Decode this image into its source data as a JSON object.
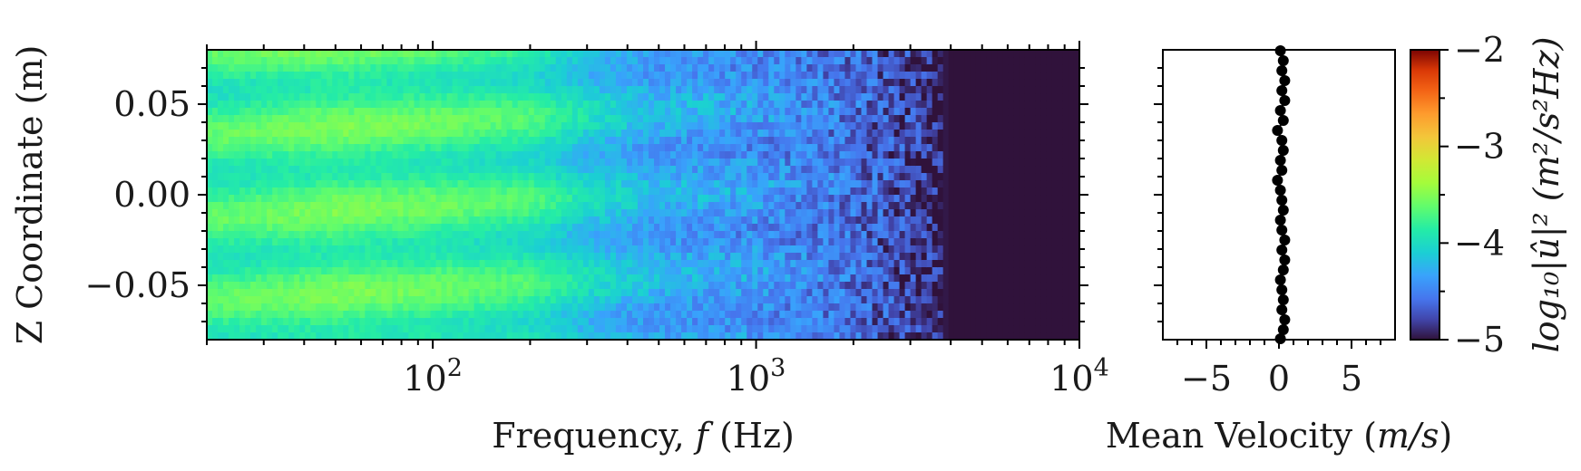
{
  "chart_data": [
    {
      "type": "heatmap",
      "xlabel": "Frequency, f (Hz)",
      "ylabel": "Z Coordinate (m)",
      "xscale": "log",
      "xlim": [
        20,
        10000
      ],
      "ylim": [
        -0.08,
        0.08
      ],
      "x_ticks": [
        100,
        1000,
        10000
      ],
      "x_tick_labels": [
        {
          "base": "10",
          "exp": "2"
        },
        {
          "base": "10",
          "exp": "3"
        },
        {
          "base": "10",
          "exp": "4"
        }
      ],
      "y_ticks": [
        0.05,
        0.0,
        -0.05
      ],
      "y_tick_labels": [
        "0.05",
        "0.00",
        "−0.05"
      ],
      "colormap": "turbo",
      "clim": [
        -5,
        -2
      ],
      "colorbar": {
        "label": "log₁₀|û|² (m²/s²Hz)",
        "ticks": [
          -2,
          -3,
          -4,
          -5
        ],
        "tick_labels": [
          "−2",
          "−3",
          "−4",
          "−5"
        ]
      },
      "level_profile": {
        "freq_hz": [
          20,
          50,
          100,
          200,
          300,
          500,
          1000,
          2000,
          3000,
          4000,
          10000
        ],
        "log10_psd": [
          -3.8,
          -3.7,
          -3.75,
          -3.85,
          -4.1,
          -4.3,
          -4.4,
          -4.6,
          -4.8,
          -5.0,
          -5.0
        ]
      }
    },
    {
      "type": "scatter",
      "xlabel": "Mean Velocity (m/s)",
      "xlim": [
        -8,
        8
      ],
      "ylim": [
        -0.08,
        0.08
      ],
      "x_ticks": [
        -5,
        0,
        5
      ],
      "x_tick_labels": [
        "−5",
        "0",
        "5"
      ],
      "marker_color": "#000000",
      "x": [
        0.1,
        0.3,
        0.2,
        0.4,
        0.2,
        0.4,
        0.1,
        0.3,
        -0.1,
        0.2,
        0.3,
        0.1,
        0.2,
        -0.1,
        0.1,
        0.2,
        0.3,
        0.1,
        0.2,
        0.4,
        0.2,
        0.4,
        0.3,
        0.1,
        0.2,
        0.3,
        0.2,
        0.4,
        0.3,
        0.1
      ],
      "y": [
        0.0795,
        0.074,
        0.0685,
        0.063,
        0.0575,
        0.052,
        0.0465,
        0.041,
        0.0355,
        0.03,
        0.0245,
        0.019,
        0.0135,
        0.008,
        0.0025,
        -0.003,
        -0.0085,
        -0.014,
        -0.0195,
        -0.025,
        -0.0305,
        -0.036,
        -0.0415,
        -0.047,
        -0.0525,
        -0.058,
        -0.0635,
        -0.069,
        -0.0745,
        -0.0795
      ]
    }
  ]
}
